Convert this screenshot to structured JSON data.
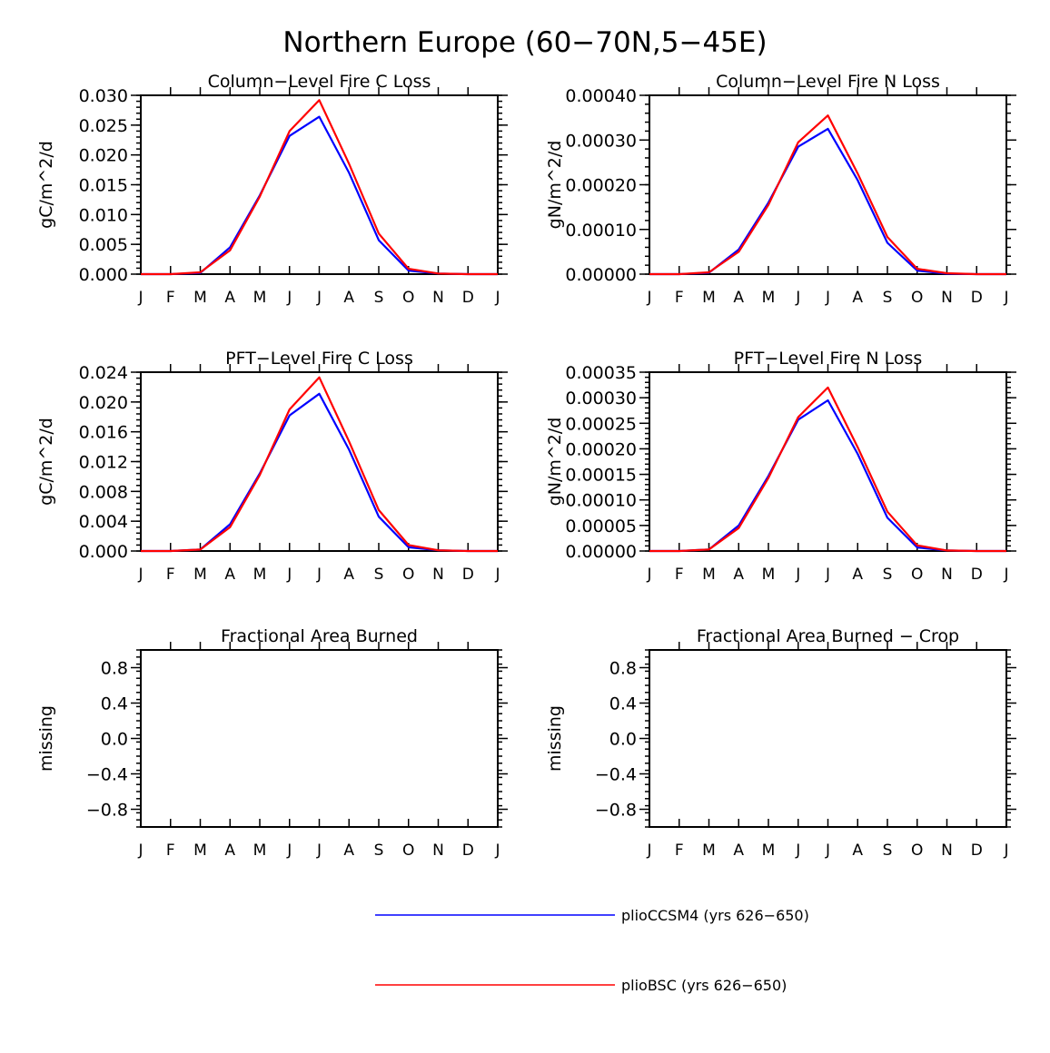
{
  "figure_title": "Northern Europe (60−70N,5−45E)",
  "colors": {
    "series_1": "#0000ff",
    "series_2": "#ff0000",
    "axis": "#000000"
  },
  "legend": [
    {
      "label": "plioCCSM4 (yrs 626−650)",
      "color": "#0000ff"
    },
    {
      "label": "plioBSC (yrs 626−650)",
      "color": "#ff0000"
    }
  ],
  "chart_data": [
    {
      "type": "line",
      "title": "Column−Level Fire C Loss",
      "ylabel": "gC/m^2/d",
      "xlabel": "",
      "categories": [
        "J",
        "F",
        "M",
        "A",
        "M",
        "J",
        "J",
        "A",
        "S",
        "O",
        "N",
        "D",
        "J"
      ],
      "ylim": [
        0,
        0.03
      ],
      "yticks": [
        "0.000",
        "0.005",
        "0.010",
        "0.015",
        "0.020",
        "0.025",
        "0.030"
      ],
      "series": [
        {
          "name": "plioCCSM4 (yrs 626−650)",
          "color": "#0000ff",
          "values": [
            0.0,
            0.0,
            0.0002,
            0.0045,
            0.0132,
            0.0232,
            0.0264,
            0.017,
            0.0057,
            0.0006,
            0.0001,
            0.0,
            0.0
          ]
        },
        {
          "name": "plioBSC (yrs 626−650)",
          "color": "#ff0000",
          "values": [
            0.0,
            0.0,
            0.0003,
            0.004,
            0.013,
            0.024,
            0.0292,
            0.0185,
            0.0068,
            0.0009,
            0.0001,
            0.0,
            0.0
          ]
        }
      ]
    },
    {
      "type": "line",
      "title": "Column−Level Fire N Loss",
      "ylabel": "gN/m^2/d",
      "xlabel": "",
      "categories": [
        "J",
        "F",
        "M",
        "A",
        "M",
        "J",
        "J",
        "A",
        "S",
        "O",
        "N",
        "D",
        "J"
      ],
      "ylim": [
        0,
        0.0004
      ],
      "yticks": [
        "0.00000",
        "0.00010",
        "0.00020",
        "0.00030",
        "0.00040"
      ],
      "series": [
        {
          "name": "plioCCSM4 (yrs 626−650)",
          "color": "#0000ff",
          "values": [
            0.0,
            0.0,
            3e-06,
            5.5e-05,
            0.00016,
            0.000285,
            0.000325,
            0.00021,
            7e-05,
            8e-06,
            1e-06,
            0.0,
            0.0
          ]
        },
        {
          "name": "plioBSC (yrs 626−650)",
          "color": "#ff0000",
          "values": [
            0.0,
            0.0,
            4e-06,
            5e-05,
            0.000155,
            0.000295,
            0.000355,
            0.000225,
            8.3e-05,
            1.2e-05,
            2e-06,
            0.0,
            0.0
          ]
        }
      ]
    },
    {
      "type": "line",
      "title": "PFT−Level Fire C Loss",
      "ylabel": "gC/m^2/d",
      "xlabel": "",
      "categories": [
        "J",
        "F",
        "M",
        "A",
        "M",
        "J",
        "J",
        "A",
        "S",
        "O",
        "N",
        "D",
        "J"
      ],
      "ylim": [
        0,
        0.024
      ],
      "yticks": [
        "0.000",
        "0.004",
        "0.008",
        "0.012",
        "0.016",
        "0.020",
        "0.024"
      ],
      "series": [
        {
          "name": "plioCCSM4 (yrs 626−650)",
          "color": "#0000ff",
          "values": [
            0.0,
            0.0,
            0.0002,
            0.0036,
            0.0104,
            0.0182,
            0.0211,
            0.0136,
            0.0046,
            0.0005,
            0.0001,
            0.0,
            0.0
          ]
        },
        {
          "name": "plioBSC (yrs 626−650)",
          "color": "#ff0000",
          "values": [
            0.0,
            0.0,
            0.0002,
            0.0032,
            0.0102,
            0.019,
            0.0233,
            0.0147,
            0.0055,
            0.0008,
            0.0001,
            0.0,
            0.0
          ]
        }
      ]
    },
    {
      "type": "line",
      "title": "PFT−Level Fire N Loss",
      "ylabel": "gN/m^2/d",
      "xlabel": "",
      "categories": [
        "J",
        "F",
        "M",
        "A",
        "M",
        "J",
        "J",
        "A",
        "S",
        "O",
        "N",
        "D",
        "J"
      ],
      "ylim": [
        0,
        0.00035
      ],
      "yticks": [
        "0.00000",
        "0.00005",
        "0.00010",
        "0.00015",
        "0.00020",
        "0.00025",
        "0.00030",
        "0.00035"
      ],
      "series": [
        {
          "name": "plioCCSM4 (yrs 626−650)",
          "color": "#0000ff",
          "values": [
            0.0,
            0.0,
            3e-06,
            5e-05,
            0.000147,
            0.000257,
            0.000295,
            0.00019,
            6.5e-05,
            7e-06,
            1e-06,
            0.0,
            0.0
          ]
        },
        {
          "name": "plioBSC (yrs 626−650)",
          "color": "#ff0000",
          "values": [
            0.0,
            0.0,
            3e-06,
            4.5e-05,
            0.000143,
            0.000262,
            0.00032,
            0.000203,
            7.7e-05,
            1.1e-05,
            1e-06,
            0.0,
            0.0
          ]
        }
      ]
    },
    {
      "type": "line",
      "title": "Fractional Area Burned",
      "ylabel": "missing",
      "xlabel": "",
      "categories": [
        "J",
        "F",
        "M",
        "A",
        "M",
        "J",
        "J",
        "A",
        "S",
        "O",
        "N",
        "D",
        "J"
      ],
      "ylim": [
        -1,
        1
      ],
      "yticks": [
        "−0.8",
        "−0.4",
        "0.0",
        "0.4",
        "0.8"
      ],
      "series": []
    },
    {
      "type": "line",
      "title": "Fractional Area Burned − Crop",
      "ylabel": "missing",
      "xlabel": "",
      "categories": [
        "J",
        "F",
        "M",
        "A",
        "M",
        "J",
        "J",
        "A",
        "S",
        "O",
        "N",
        "D",
        "J"
      ],
      "ylim": [
        -1,
        1
      ],
      "yticks": [
        "−0.8",
        "−0.4",
        "0.0",
        "0.4",
        "0.8"
      ],
      "series": []
    }
  ]
}
